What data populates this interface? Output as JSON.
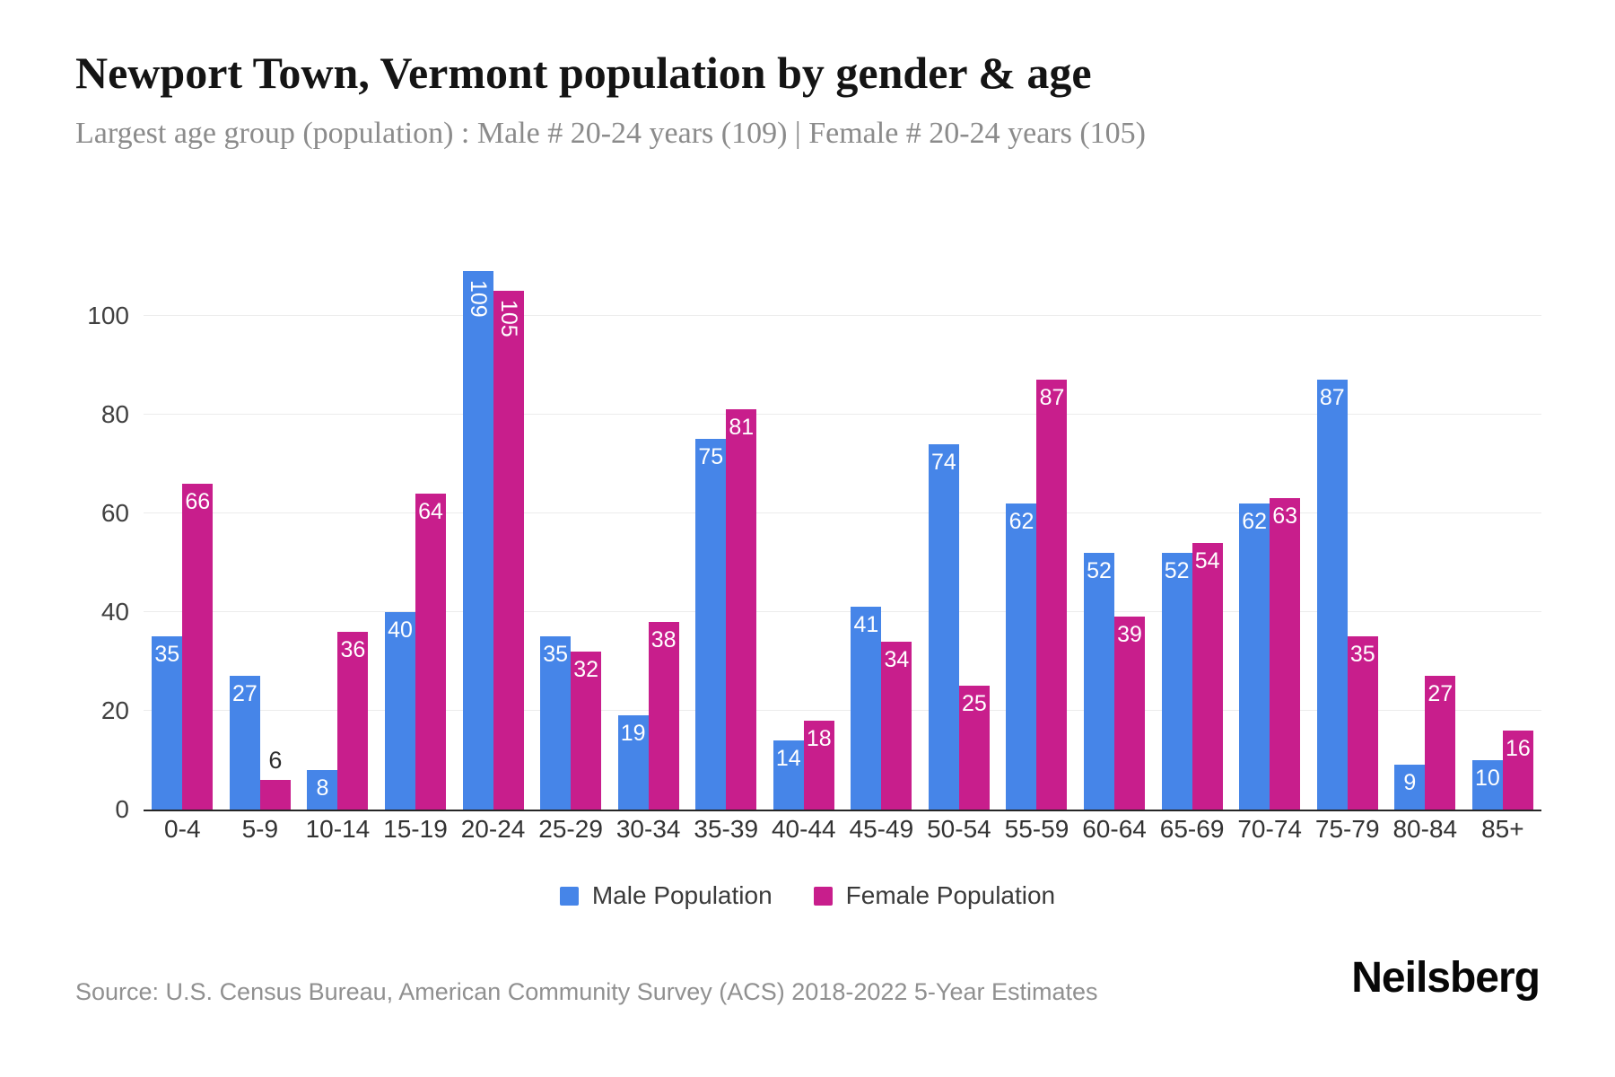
{
  "header": {
    "title": "Newport Town, Vermont population by gender & age",
    "subtitle": "Largest age group (population) : Male # 20-24 years (109) | Female # 20-24 years (105)"
  },
  "chart_data": {
    "type": "bar",
    "title": "Newport Town, Vermont population by gender & age",
    "categories": [
      "0-4",
      "5-9",
      "10-14",
      "15-19",
      "20-24",
      "25-29",
      "30-34",
      "35-39",
      "40-44",
      "45-49",
      "50-54",
      "55-59",
      "60-64",
      "65-69",
      "70-74",
      "75-79",
      "80-84",
      "85+"
    ],
    "series": [
      {
        "name": "Male Population",
        "color": "#4685E8",
        "values": [
          35,
          27,
          8,
          40,
          109,
          35,
          19,
          75,
          14,
          41,
          74,
          62,
          52,
          52,
          62,
          87,
          9,
          10
        ]
      },
      {
        "name": "Female Population",
        "color": "#C81E8C",
        "values": [
          66,
          6,
          36,
          64,
          105,
          32,
          38,
          81,
          18,
          34,
          25,
          87,
          39,
          54,
          63,
          35,
          27,
          16
        ]
      }
    ],
    "xlabel": "",
    "ylabel": "",
    "yticks": [
      0,
      20,
      40,
      60,
      80,
      100
    ],
    "ylim": [
      0,
      117
    ],
    "grid": true,
    "legend_position": "bottom"
  },
  "footer": {
    "source": "Source: U.S. Census Bureau, American Community Survey (ACS) 2018-2022 5-Year Estimates",
    "brand": "Neilsberg"
  }
}
